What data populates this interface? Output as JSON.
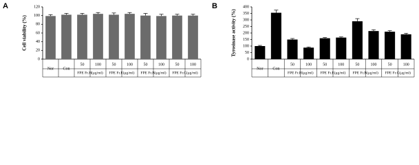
{
  "chart_data": [
    {
      "type": "bar",
      "panel_label": "A",
      "ylabel": "Cell viability (%)",
      "categories": [
        "Nor",
        "Con",
        "50",
        "100",
        "50",
        "100",
        "50",
        "100",
        "50",
        "100"
      ],
      "group_labels": [
        "FPE Fr.H(μg/ml)",
        "FPE Fr.E(μg/ml)",
        "FPE Fr.B(μg/ml)",
        "FPE Fr.C(μg/ml)"
      ],
      "values": [
        99,
        102,
        102,
        104,
        102,
        104,
        100,
        99,
        100,
        100
      ],
      "errors": [
        3,
        3,
        3,
        3,
        4,
        3,
        5,
        4,
        3,
        3
      ],
      "color": "#6b6b6b",
      "ylim": [
        0,
        120
      ],
      "yticks": [
        0,
        20,
        40,
        60,
        80,
        100,
        120
      ]
    },
    {
      "type": "bar",
      "panel_label": "B",
      "ylabel": "Tyrosinase activity (%)",
      "categories": [
        "Nor",
        "Con",
        "50",
        "100",
        "50",
        "100",
        "50",
        "100",
        "50",
        "100"
      ],
      "group_labels": [
        "FPE Fr.H(μg/ml)",
        "FPE Fr.E(μg/ml)",
        "FPE Fr.B(μg/ml)",
        "FPE Fr.C(μg/ml)"
      ],
      "values": [
        100,
        355,
        150,
        88,
        160,
        165,
        290,
        215,
        210,
        190
      ],
      "errors": [
        5,
        20,
        8,
        5,
        5,
        5,
        20,
        10,
        8,
        8
      ],
      "color": "#000000",
      "ylim": [
        0,
        400
      ],
      "yticks": [
        0,
        50,
        100,
        150,
        200,
        250,
        300,
        350,
        400
      ]
    }
  ]
}
